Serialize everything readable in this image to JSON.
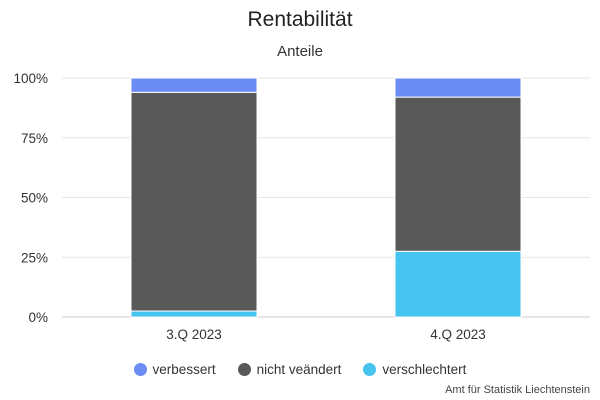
{
  "chart_data": {
    "type": "bar",
    "stacked": true,
    "title": "Rentabilität",
    "subtitle": "Anteile",
    "categories": [
      "3.Q 2023",
      "4.Q 2023"
    ],
    "y_ticks": [
      "0%",
      "25%",
      "50%",
      "75%",
      "100%"
    ],
    "ylim": [
      0,
      100
    ],
    "grid": true,
    "legend_position": "bottom",
    "series": [
      {
        "name": "verschlechtert",
        "color": "#47c3f0",
        "values": [
          2.5,
          27.5
        ]
      },
      {
        "name": "nicht veändert",
        "color": "#595959",
        "values": [
          91.5,
          64.5
        ]
      },
      {
        "name": "verbessert",
        "color": "#6b8cf5",
        "values": [
          6,
          8
        ]
      }
    ],
    "legend_order": [
      "verbessert",
      "nicht veändert",
      "verschlechtert"
    ]
  },
  "credits": "Amt für Statistik Liechtenstein"
}
